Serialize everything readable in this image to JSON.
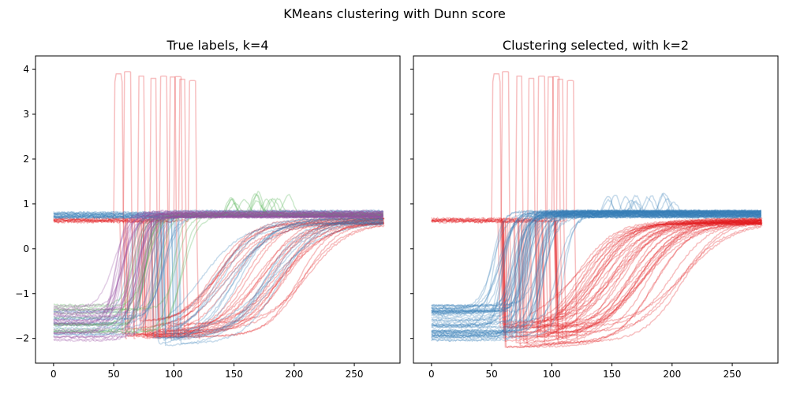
{
  "figure": {
    "suptitle": "KMeans clustering with Dunn score"
  },
  "colors": {
    "red": "#e41a1c",
    "blue": "#377eb8",
    "green": "#4daf4a",
    "purple": "#984ea3",
    "axis": "#000000"
  },
  "chart_data": [
    {
      "type": "line",
      "title": "True labels, k=4",
      "xlabel": "",
      "ylabel": "",
      "xlim": [
        -15,
        288
      ],
      "ylim": [
        -2.55,
        4.3
      ],
      "xticks": [
        0,
        50,
        100,
        150,
        200,
        250
      ],
      "yticks": [
        -2,
        -1,
        0,
        1,
        2,
        3,
        4
      ],
      "grid": false,
      "series": [
        {
          "cluster": 0,
          "color": "#e41a1c",
          "style": "spike",
          "count": 9,
          "levels": [
            0.62,
            0.64,
            0.66,
            0.6,
            0.65,
            0.63,
            0.61,
            0.67,
            0.62
          ],
          "rise_x": [
            50,
            58,
            70,
            80,
            88,
            96,
            100,
            104,
            112
          ],
          "duration": [
            8,
            7,
            6,
            6,
            7,
            6,
            7,
            6,
            7
          ],
          "peak": [
            3.9,
            3.95,
            3.85,
            3.8,
            3.85,
            3.83,
            3.84,
            3.78,
            3.75
          ]
        },
        {
          "cluster": 0,
          "color": "#e41a1c",
          "style": "slow-rise",
          "count": 28,
          "drop_x": [
            55,
            95
          ],
          "low": [
            -2.0,
            -1.6
          ],
          "mid_x": [
            130,
            215
          ],
          "final": [
            0.55,
            0.7
          ]
        },
        {
          "cluster": 1,
          "color": "#377eb8",
          "style": "slow-rise",
          "count": 16,
          "start": [
            0.68,
            0.82
          ],
          "drop_x": [
            75,
            105
          ],
          "low": [
            -2.2,
            -1.9
          ],
          "mid_x": [
            120,
            190
          ],
          "final": [
            0.55,
            0.7
          ]
        },
        {
          "cluster": 1,
          "color": "#377eb8",
          "style": "fast-rise",
          "count": 12,
          "start": [
            -2.0,
            -1.3
          ],
          "mid_x": [
            60,
            95
          ],
          "final": [
            0.7,
            0.85
          ]
        },
        {
          "cluster": 2,
          "color": "#4daf4a",
          "style": "bumpy-rise",
          "count": 14,
          "start": [
            -2.05,
            -1.25
          ],
          "mid_x": [
            60,
            110
          ],
          "final": [
            0.7,
            0.8
          ],
          "bump_x": [
            145,
            205
          ],
          "bump": [
            1.0,
            1.27
          ]
        },
        {
          "cluster": 3,
          "color": "#984ea3",
          "style": "fast-rise",
          "count": 26,
          "start": [
            -2.05,
            -1.25
          ],
          "mid_x": [
            50,
            80
          ],
          "final": [
            0.7,
            0.85
          ]
        }
      ]
    },
    {
      "type": "line",
      "title": "Clustering selected, with k=2",
      "xlabel": "",
      "ylabel": "",
      "xlim": [
        -15,
        288
      ],
      "ylim": [
        -2.55,
        4.3
      ],
      "xticks": [
        0,
        50,
        100,
        150,
        200,
        250
      ],
      "yticks": [
        -2,
        -1,
        0,
        1,
        2,
        3,
        4
      ],
      "grid": false,
      "series": [
        {
          "cluster": 0,
          "color": "#e41a1c",
          "style": "spike",
          "count": 9,
          "levels": [
            0.62,
            0.64,
            0.66,
            0.6,
            0.65,
            0.63,
            0.61,
            0.67,
            0.62
          ],
          "rise_x": [
            50,
            58,
            70,
            80,
            88,
            96,
            100,
            104,
            112
          ],
          "duration": [
            8,
            7,
            6,
            6,
            7,
            6,
            7,
            6,
            7
          ],
          "peak": [
            3.9,
            3.95,
            3.85,
            3.8,
            3.85,
            3.83,
            3.84,
            3.78,
            3.75
          ]
        },
        {
          "cluster": 0,
          "color": "#e41a1c",
          "style": "slow-rise",
          "count": 44,
          "drop_x": [
            55,
            105
          ],
          "low": [
            -2.2,
            -1.6
          ],
          "mid_x": [
            120,
            215
          ],
          "final": [
            0.55,
            0.7
          ]
        },
        {
          "cluster": 1,
          "color": "#377eb8",
          "style": "fast-rise",
          "count": 38,
          "start": [
            -2.05,
            -1.25
          ],
          "mid_x": [
            50,
            95
          ],
          "final": [
            0.7,
            0.85
          ]
        },
        {
          "cluster": 1,
          "color": "#377eb8",
          "style": "bumpy-rise",
          "count": 14,
          "start": [
            -2.05,
            -1.25
          ],
          "mid_x": [
            60,
            110
          ],
          "final": [
            0.7,
            0.8
          ],
          "bump_x": [
            145,
            205
          ],
          "bump": [
            1.0,
            1.27
          ]
        }
      ]
    }
  ]
}
